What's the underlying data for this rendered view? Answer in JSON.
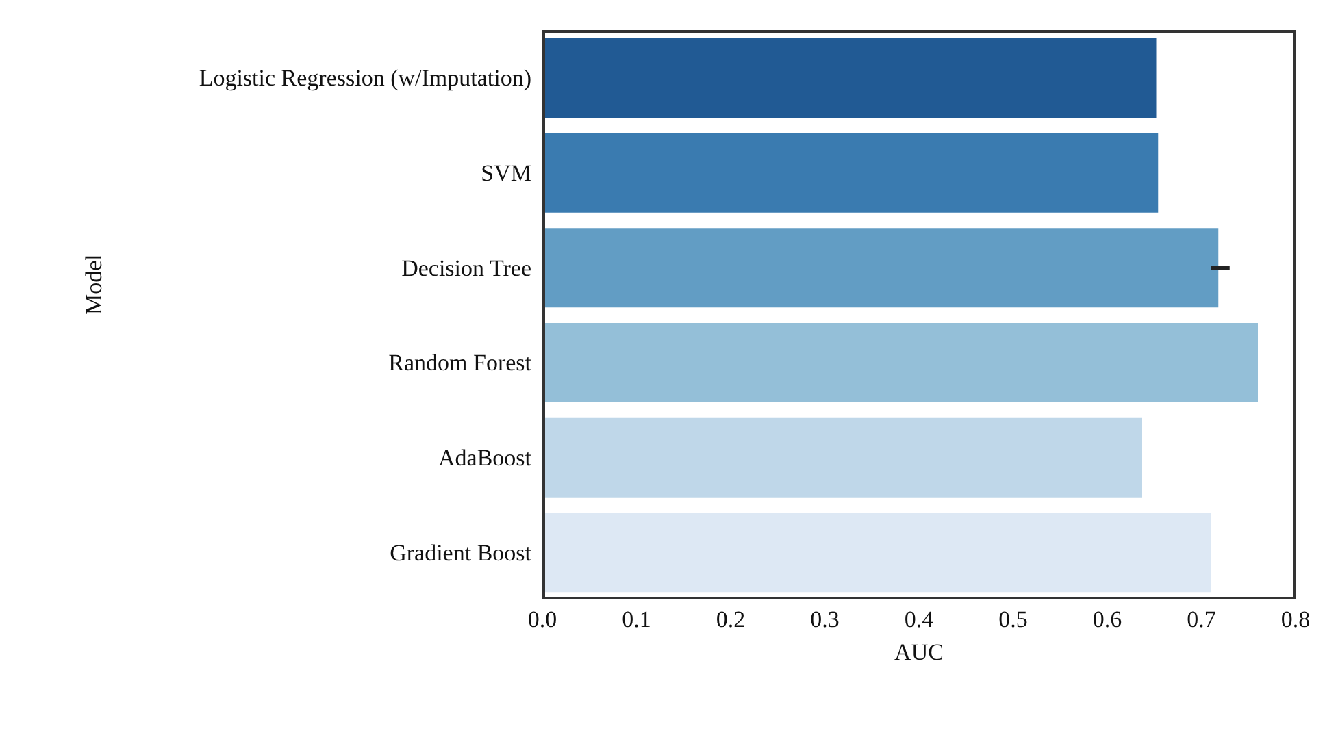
{
  "chart_data": {
    "type": "bar",
    "orientation": "horizontal",
    "xlabel": "AUC",
    "ylabel": "Model",
    "categories": [
      "Logistic Regression (w/Imputation)",
      "SVM",
      "Decision Tree",
      "Random Forest",
      "AdaBoost",
      "Gradient Boost"
    ],
    "values": [
      0.652,
      0.654,
      0.718,
      0.76,
      0.637,
      0.71
    ],
    "colors": [
      "#215a94",
      "#3a7bb0",
      "#629dc4",
      "#94bfd8",
      "#bfd7e9",
      "#dde8f4"
    ],
    "errors": [
      null,
      null,
      [
        0.71,
        0.73
      ],
      null,
      null,
      null
    ],
    "xlim": [
      0,
      0.8
    ],
    "xticks": [
      {
        "value": 0,
        "label": "0.0"
      },
      0.1,
      0.2,
      0.3,
      0.4,
      0.5,
      0.6,
      0.7,
      0.8
    ],
    "grid": false,
    "legend": false
  }
}
